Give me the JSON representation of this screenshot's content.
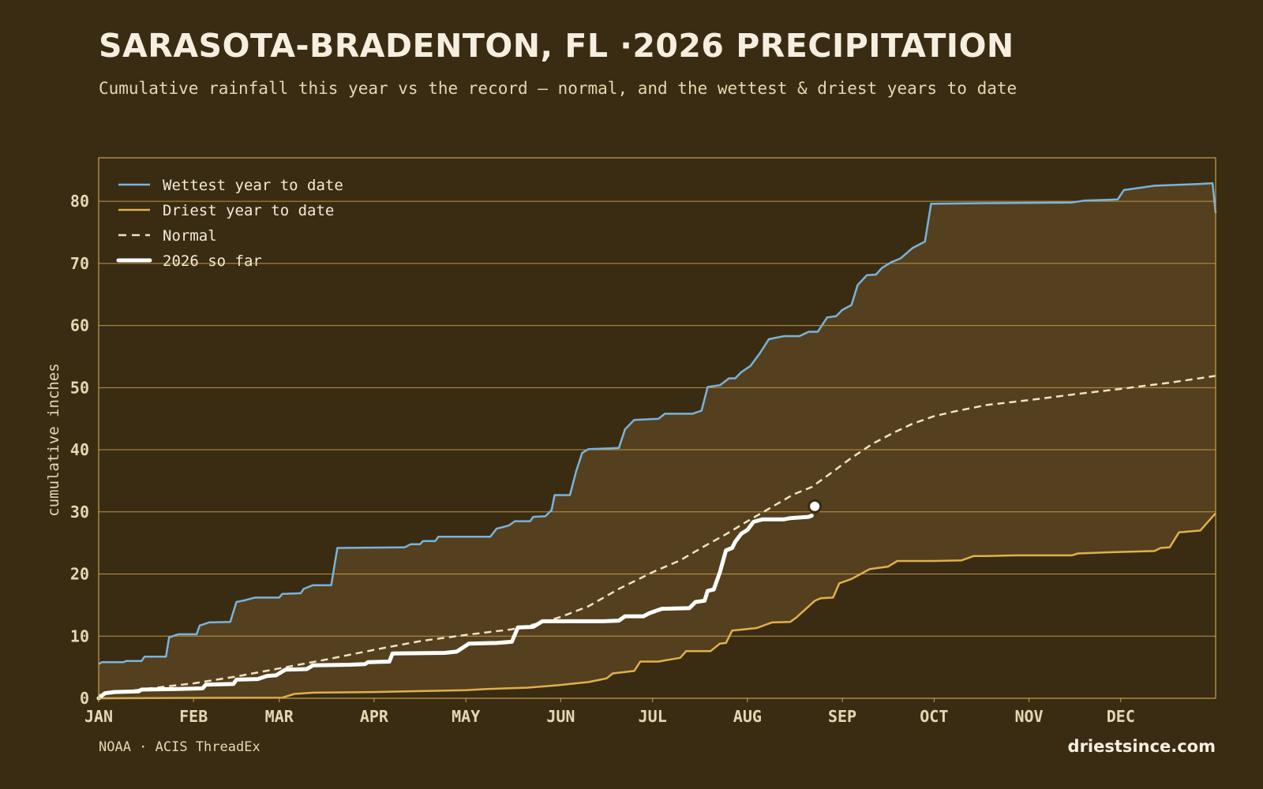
{
  "header": {
    "title": "SARASOTA-BRADENTON, FL ·2026 PRECIPITATION",
    "subtitle": "Cumulative rainfall this year vs the record — normal, and the wettest & driest years to date"
  },
  "footer": {
    "source": "NOAA · ACIS ThreadEx",
    "site": "driestsince.com"
  },
  "colors": {
    "background": "#3a2c13",
    "band": "#54401e",
    "frame": "#c9a24a",
    "grid": "#c9a24a",
    "wettest": "#7ab3dc",
    "driest": "#e0b04a",
    "normal": "#efe3c4",
    "current": "#ffffff"
  },
  "chart_data": {
    "type": "line",
    "title": "SARASOTA-BRADENTON, FL ·2026 PRECIPITATION",
    "ylabel": "cumulative inches",
    "xlabel": "",
    "xlim": [
      0,
      365
    ],
    "ylim": [
      0,
      87
    ],
    "grid": true,
    "legend_placement": "top-left",
    "x_ticks": [
      {
        "label": "JAN",
        "day": 0
      },
      {
        "label": "FEB",
        "day": 31
      },
      {
        "label": "MAR",
        "day": 59
      },
      {
        "label": "APR",
        "day": 90
      },
      {
        "label": "MAY",
        "day": 120
      },
      {
        "label": "JUN",
        "day": 151
      },
      {
        "label": "JUL",
        "day": 181
      },
      {
        "label": "AUG",
        "day": 212
      },
      {
        "label": "SEP",
        "day": 243
      },
      {
        "label": "OCT",
        "day": 273
      },
      {
        "label": "NOV",
        "day": 304
      },
      {
        "label": "DEC",
        "day": 334
      }
    ],
    "y_ticks": [
      0,
      10,
      20,
      30,
      40,
      50,
      60,
      70,
      80
    ],
    "series": [
      {
        "name": "Wettest year to date",
        "style": "solid",
        "points": [
          [
            0,
            5.5
          ],
          [
            1,
            5.8
          ],
          [
            8,
            5.8
          ],
          [
            9,
            6.0
          ],
          [
            14,
            6.0
          ],
          [
            15,
            6.7
          ],
          [
            22,
            6.7
          ],
          [
            23,
            9.8
          ],
          [
            26,
            10.3
          ],
          [
            32,
            10.3
          ],
          [
            33,
            11.7
          ],
          [
            36,
            12.2
          ],
          [
            43,
            12.3
          ],
          [
            45,
            15.5
          ],
          [
            48,
            15.8
          ],
          [
            51,
            16.2
          ],
          [
            59,
            16.2
          ],
          [
            60,
            16.8
          ],
          [
            66,
            16.9
          ],
          [
            67,
            17.6
          ],
          [
            70,
            18.2
          ],
          [
            76,
            18.2
          ],
          [
            78,
            24.2
          ],
          [
            100,
            24.3
          ],
          [
            102,
            24.8
          ],
          [
            105,
            24.8
          ],
          [
            106,
            25.3
          ],
          [
            110,
            25.3
          ],
          [
            111,
            26.0
          ],
          [
            128,
            26.0
          ],
          [
            130,
            27.3
          ],
          [
            134,
            27.8
          ],
          [
            136,
            28.5
          ],
          [
            141,
            28.5
          ],
          [
            142,
            29.2
          ],
          [
            146,
            29.3
          ],
          [
            148,
            30.3
          ],
          [
            149,
            32.7
          ],
          [
            154,
            32.7
          ],
          [
            156,
            36.5
          ],
          [
            158,
            39.5
          ],
          [
            160,
            40.1
          ],
          [
            170,
            40.3
          ],
          [
            172,
            43.3
          ],
          [
            175,
            44.8
          ],
          [
            183,
            45.0
          ],
          [
            185,
            45.8
          ],
          [
            194,
            45.8
          ],
          [
            197,
            46.3
          ],
          [
            199,
            50.1
          ],
          [
            203,
            50.4
          ],
          [
            206,
            51.5
          ],
          [
            208,
            51.5
          ],
          [
            210,
            52.5
          ],
          [
            213,
            53.5
          ],
          [
            216,
            55.5
          ],
          [
            219,
            57.8
          ],
          [
            224,
            58.3
          ],
          [
            229,
            58.3
          ],
          [
            232,
            59.0
          ],
          [
            235,
            59.0
          ],
          [
            238,
            61.3
          ],
          [
            241,
            61.5
          ],
          [
            243,
            62.5
          ],
          [
            246,
            63.3
          ],
          [
            248,
            66.5
          ],
          [
            251,
            68.1
          ],
          [
            254,
            68.2
          ],
          [
            256,
            69.3
          ],
          [
            259,
            70.2
          ],
          [
            262,
            70.8
          ],
          [
            266,
            72.5
          ],
          [
            270,
            73.5
          ],
          [
            272,
            79.6
          ],
          [
            290,
            79.7
          ],
          [
            318,
            79.8
          ],
          [
            322,
            80.1
          ],
          [
            333,
            80.3
          ],
          [
            335,
            81.8
          ],
          [
            345,
            82.5
          ],
          [
            360,
            82.8
          ],
          [
            364,
            82.9
          ],
          [
            365,
            78.1
          ]
        ]
      },
      {
        "name": "Driest year to date",
        "style": "solid",
        "points": [
          [
            0,
            0.0
          ],
          [
            60,
            0.1
          ],
          [
            64,
            0.7
          ],
          [
            70,
            0.9
          ],
          [
            90,
            1.0
          ],
          [
            120,
            1.3
          ],
          [
            127,
            1.5
          ],
          [
            140,
            1.7
          ],
          [
            150,
            2.1
          ],
          [
            158,
            2.5
          ],
          [
            160,
            2.6
          ],
          [
            166,
            3.2
          ],
          [
            168,
            4.0
          ],
          [
            175,
            4.4
          ],
          [
            177,
            5.9
          ],
          [
            183,
            5.9
          ],
          [
            185,
            6.1
          ],
          [
            190,
            6.5
          ],
          [
            192,
            7.6
          ],
          [
            200,
            7.6
          ],
          [
            203,
            8.8
          ],
          [
            205,
            8.9
          ],
          [
            207,
            10.9
          ],
          [
            215,
            11.3
          ],
          [
            220,
            12.2
          ],
          [
            226,
            12.3
          ],
          [
            228,
            13.0
          ],
          [
            234,
            15.7
          ],
          [
            236,
            16.1
          ],
          [
            240,
            16.2
          ],
          [
            242,
            18.5
          ],
          [
            246,
            19.2
          ],
          [
            249,
            20.0
          ],
          [
            252,
            20.8
          ],
          [
            258,
            21.2
          ],
          [
            261,
            22.1
          ],
          [
            273,
            22.1
          ],
          [
            282,
            22.2
          ],
          [
            286,
            22.9
          ],
          [
            290,
            22.9
          ],
          [
            300,
            23.0
          ],
          [
            318,
            23.0
          ],
          [
            320,
            23.3
          ],
          [
            330,
            23.5
          ],
          [
            345,
            23.7
          ],
          [
            347,
            24.2
          ],
          [
            350,
            24.3
          ],
          [
            353,
            26.7
          ],
          [
            360,
            27.0
          ],
          [
            365,
            29.8
          ]
        ]
      },
      {
        "name": "Normal",
        "style": "dashed",
        "points": [
          [
            0,
            0.5
          ],
          [
            15,
            1.5
          ],
          [
            31,
            2.4
          ],
          [
            45,
            3.5
          ],
          [
            59,
            4.8
          ],
          [
            75,
            6.3
          ],
          [
            90,
            7.8
          ],
          [
            105,
            9.2
          ],
          [
            120,
            10.2
          ],
          [
            135,
            11.1
          ],
          [
            145,
            12.2
          ],
          [
            151,
            13.1
          ],
          [
            160,
            14.8
          ],
          [
            170,
            17.6
          ],
          [
            181,
            20.3
          ],
          [
            190,
            22.2
          ],
          [
            198,
            24.5
          ],
          [
            205,
            26.4
          ],
          [
            212,
            28.5
          ],
          [
            220,
            30.8
          ],
          [
            227,
            32.8
          ],
          [
            233,
            34.0
          ],
          [
            240,
            36.5
          ],
          [
            246,
            38.7
          ],
          [
            253,
            41.0
          ],
          [
            260,
            42.8
          ],
          [
            266,
            44.2
          ],
          [
            273,
            45.4
          ],
          [
            280,
            46.2
          ],
          [
            290,
            47.2
          ],
          [
            304,
            48.0
          ],
          [
            320,
            49.0
          ],
          [
            334,
            49.8
          ],
          [
            350,
            50.8
          ],
          [
            365,
            51.9
          ]
        ]
      },
      {
        "name": "2026 so far",
        "style": "thick",
        "points": [
          [
            0,
            0.0
          ],
          [
            2,
            0.8
          ],
          [
            5,
            1.0
          ],
          [
            13,
            1.1
          ],
          [
            14,
            1.4
          ],
          [
            26,
            1.5
          ],
          [
            34,
            1.6
          ],
          [
            35,
            2.2
          ],
          [
            44,
            2.3
          ],
          [
            45,
            3.0
          ],
          [
            52,
            3.1
          ],
          [
            55,
            3.6
          ],
          [
            58,
            3.7
          ],
          [
            61,
            4.6
          ],
          [
            68,
            4.7
          ],
          [
            70,
            5.3
          ],
          [
            82,
            5.4
          ],
          [
            87,
            5.5
          ],
          [
            88,
            5.8
          ],
          [
            95,
            5.9
          ],
          [
            96,
            7.2
          ],
          [
            113,
            7.3
          ],
          [
            117,
            7.5
          ],
          [
            121,
            8.8
          ],
          [
            130,
            8.9
          ],
          [
            135,
            9.1
          ],
          [
            137,
            11.4
          ],
          [
            142,
            11.5
          ],
          [
            145,
            12.4
          ],
          [
            165,
            12.4
          ],
          [
            170,
            12.5
          ],
          [
            172,
            13.2
          ],
          [
            178,
            13.2
          ],
          [
            180,
            13.7
          ],
          [
            184,
            14.4
          ],
          [
            193,
            14.5
          ],
          [
            195,
            15.5
          ],
          [
            198,
            15.7
          ],
          [
            199,
            17.3
          ],
          [
            201,
            17.5
          ],
          [
            203,
            20.3
          ],
          [
            205,
            23.8
          ],
          [
            207,
            24.2
          ],
          [
            208,
            25.2
          ],
          [
            210,
            26.5
          ],
          [
            212,
            27.1
          ],
          [
            214,
            28.4
          ],
          [
            217,
            28.8
          ],
          [
            224,
            28.8
          ],
          [
            226,
            29.0
          ],
          [
            232,
            29.2
          ],
          [
            233,
            29.4
          ]
        ]
      }
    ],
    "endpoint_marker": {
      "day": 234,
      "value": 30.9
    }
  }
}
